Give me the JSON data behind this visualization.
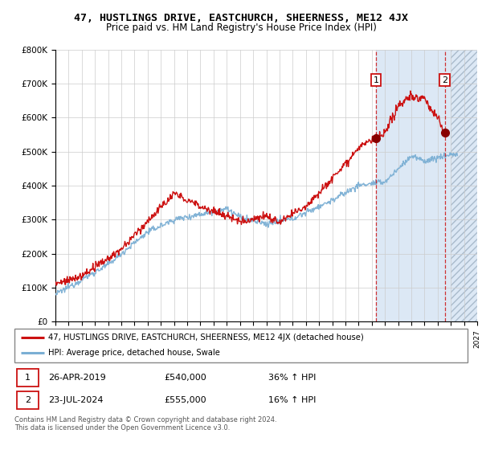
{
  "title": "47, HUSTLINGS DRIVE, EASTCHURCH, SHEERNESS, ME12 4JX",
  "subtitle": "Price paid vs. HM Land Registry's House Price Index (HPI)",
  "ylim": [
    0,
    800000
  ],
  "yticks": [
    0,
    100000,
    200000,
    300000,
    400000,
    500000,
    600000,
    700000,
    800000
  ],
  "ytick_labels": [
    "£0",
    "£100K",
    "£200K",
    "£300K",
    "£400K",
    "£500K",
    "£600K",
    "£700K",
    "£800K"
  ],
  "hpi_color": "#7bafd4",
  "price_color": "#cc1111",
  "shade_color": "#dce8f5",
  "grid_color": "#cccccc",
  "point1_x_year": 2019.32,
  "point1_y": 540000,
  "point2_x_year": 2024.55,
  "point2_y": 555000,
  "legend_line1": "47, HUSTLINGS DRIVE, EASTCHURCH, SHEERNESS, ME12 4JX (detached house)",
  "legend_line2": "HPI: Average price, detached house, Swale",
  "footnote": "Contains HM Land Registry data © Crown copyright and database right 2024.\nThis data is licensed under the Open Government Licence v3.0.",
  "xmin": 1995,
  "xmax": 2027
}
